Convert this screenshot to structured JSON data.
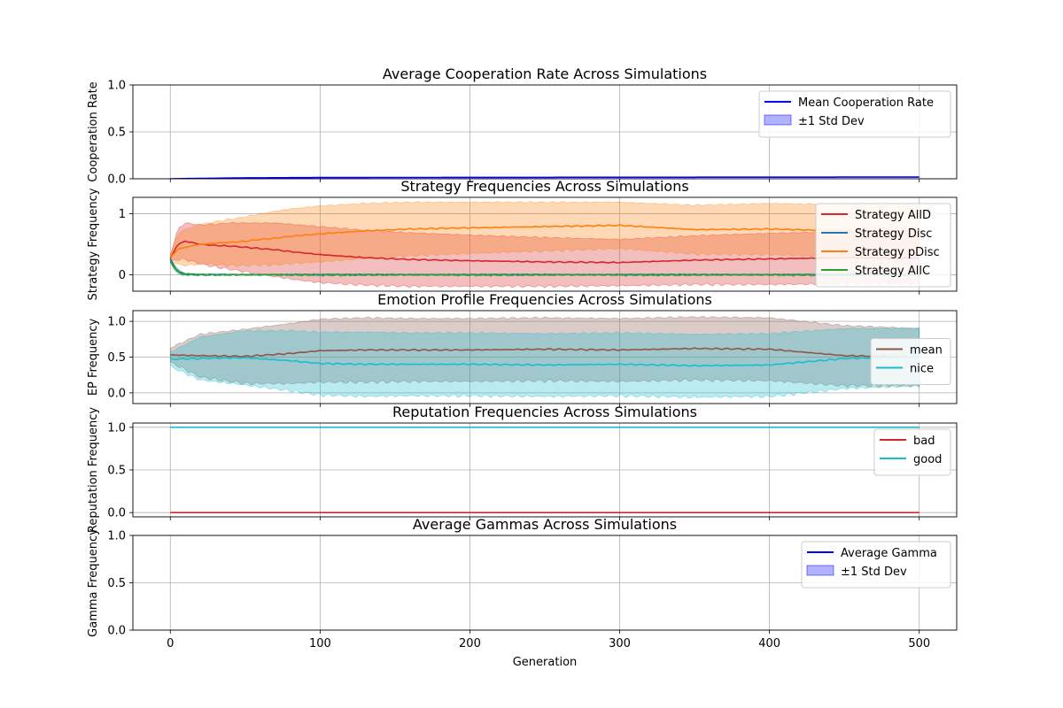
{
  "xlabel": "Generation",
  "chart_data": [
    {
      "type": "line",
      "title": "Average Cooperation Rate Across Simulations",
      "ylabel": "Cooperation Rate",
      "xlim": [
        -25,
        525
      ],
      "ylim": [
        0,
        1
      ],
      "yticks": [
        "0.0",
        "0.5",
        "1.0"
      ],
      "xticks": [
        "0",
        "100",
        "200",
        "300",
        "400",
        "500"
      ],
      "grid": true,
      "legend_position": "upper right",
      "series": [
        {
          "name": "Mean Cooperation Rate",
          "color": "#0000ff",
          "x": [
            0,
            50,
            100,
            200,
            300,
            400,
            500
          ],
          "y": [
            0.0,
            0.01,
            0.013,
            0.015,
            0.016,
            0.017,
            0.018
          ]
        }
      ],
      "band": {
        "name": "±1 Std Dev",
        "color": "#0000ff"
      }
    },
    {
      "type": "line",
      "title": "Strategy Frequencies Across Simulations",
      "ylabel": "Strategy Frequency",
      "xlim": [
        -25,
        525
      ],
      "ylim": [
        -0.27,
        1.27
      ],
      "yticks": [
        "0",
        "1"
      ],
      "ytick_values": [
        0,
        1
      ],
      "xticks": [
        "0",
        "100",
        "200",
        "300",
        "400",
        "500"
      ],
      "grid": true,
      "legend_position": "upper right",
      "series": [
        {
          "name": "Strategy AllD",
          "color": "#d62728",
          "x": [
            0,
            5,
            10,
            20,
            30,
            40,
            50,
            60,
            70,
            80,
            100,
            130,
            160,
            200,
            250,
            300,
            350,
            400,
            450,
            500
          ],
          "y": [
            0.27,
            0.5,
            0.55,
            0.5,
            0.48,
            0.47,
            0.45,
            0.43,
            0.41,
            0.38,
            0.33,
            0.28,
            0.25,
            0.23,
            0.21,
            0.2,
            0.24,
            0.26,
            0.28,
            0.27
          ],
          "std": [
            0.05,
            0.25,
            0.3,
            0.32,
            0.35,
            0.38,
            0.4,
            0.42,
            0.44,
            0.45,
            0.46,
            0.45,
            0.44,
            0.42,
            0.4,
            0.38,
            0.4,
            0.42,
            0.43,
            0.42
          ]
        },
        {
          "name": "Strategy Disc",
          "color": "#1f77b4",
          "x": [
            0,
            5,
            10,
            20,
            500
          ],
          "y": [
            0.25,
            0.05,
            0.01,
            0.0,
            0.0
          ],
          "std": [
            0.02,
            0.03,
            0.01,
            0.005,
            0.005
          ]
        },
        {
          "name": "Strategy pDisc",
          "color": "#ff7f0e",
          "x": [
            0,
            5,
            10,
            20,
            30,
            40,
            50,
            60,
            70,
            80,
            100,
            130,
            160,
            200,
            250,
            300,
            350,
            400,
            450,
            500
          ],
          "y": [
            0.28,
            0.42,
            0.45,
            0.5,
            0.52,
            0.53,
            0.55,
            0.58,
            0.6,
            0.63,
            0.67,
            0.72,
            0.75,
            0.77,
            0.79,
            0.81,
            0.74,
            0.75,
            0.72,
            0.73
          ],
          "std": [
            0.05,
            0.25,
            0.3,
            0.32,
            0.35,
            0.38,
            0.4,
            0.42,
            0.44,
            0.45,
            0.46,
            0.45,
            0.44,
            0.42,
            0.4,
            0.38,
            0.4,
            0.42,
            0.43,
            0.42
          ]
        },
        {
          "name": "Strategy AllC",
          "color": "#2ca02c",
          "x": [
            0,
            5,
            10,
            20,
            500
          ],
          "y": [
            0.22,
            0.04,
            0.01,
            0.0,
            0.0
          ],
          "std": [
            0.02,
            0.03,
            0.01,
            0.005,
            0.005
          ]
        }
      ]
    },
    {
      "type": "line",
      "title": "Emotion Profile Frequencies Across Simulations",
      "ylabel": "EP Frequency",
      "xlim": [
        -25,
        525
      ],
      "ylim": [
        -0.15,
        1.15
      ],
      "yticks": [
        "0.0",
        "0.5",
        "1.0"
      ],
      "ytick_values": [
        0,
        0.5,
        1
      ],
      "xticks": [
        "0",
        "100",
        "200",
        "300",
        "400",
        "500"
      ],
      "grid": true,
      "legend_position": "right",
      "series": [
        {
          "name": "mean",
          "color": "#8c564b",
          "x": [
            0,
            20,
            50,
            80,
            100,
            130,
            160,
            200,
            250,
            300,
            350,
            400,
            450,
            500
          ],
          "y": [
            0.53,
            0.52,
            0.51,
            0.55,
            0.59,
            0.6,
            0.6,
            0.6,
            0.61,
            0.6,
            0.62,
            0.61,
            0.52,
            0.5
          ],
          "std": [
            0.1,
            0.3,
            0.38,
            0.42,
            0.44,
            0.45,
            0.44,
            0.44,
            0.44,
            0.44,
            0.44,
            0.44,
            0.42,
            0.4
          ]
        },
        {
          "name": "nice",
          "color": "#17becf",
          "x": [
            0,
            20,
            50,
            80,
            100,
            130,
            160,
            200,
            250,
            300,
            350,
            400,
            450,
            500
          ],
          "y": [
            0.47,
            0.48,
            0.49,
            0.45,
            0.41,
            0.4,
            0.4,
            0.4,
            0.39,
            0.4,
            0.38,
            0.39,
            0.48,
            0.5
          ],
          "std": [
            0.1,
            0.3,
            0.38,
            0.42,
            0.44,
            0.45,
            0.44,
            0.44,
            0.44,
            0.44,
            0.44,
            0.44,
            0.42,
            0.4
          ]
        }
      ]
    },
    {
      "type": "line",
      "title": "Reputation Frequencies Across Simulations",
      "ylabel": "Reputation Frequency",
      "xlim": [
        -25,
        525
      ],
      "ylim": [
        -0.05,
        1.05
      ],
      "yticks": [
        "0.0",
        "0.5",
        "1.0"
      ],
      "ytick_values": [
        0,
        0.5,
        1
      ],
      "xticks": [
        "0",
        "100",
        "200",
        "300",
        "400",
        "500"
      ],
      "grid": true,
      "legend_position": "upper right",
      "series": [
        {
          "name": "bad",
          "color": "#d62728",
          "x": [
            0,
            500
          ],
          "y": [
            0.0,
            0.0
          ]
        },
        {
          "name": "good",
          "color": "#17becf",
          "x": [
            0,
            500
          ],
          "y": [
            1.0,
            1.0
          ]
        }
      ]
    },
    {
      "type": "line",
      "title": "Average Gammas Across Simulations",
      "ylabel": "Gamma Frequency",
      "xlim": [
        -25,
        525
      ],
      "ylim": [
        0,
        1
      ],
      "yticks": [
        "0.0",
        "0.5",
        "1.0"
      ],
      "ytick_values": [
        0,
        0.5,
        1
      ],
      "xticks": [
        "0",
        "100",
        "200",
        "300",
        "400",
        "500"
      ],
      "grid": true,
      "legend_position": "upper right",
      "series": [
        {
          "name": "Average Gamma",
          "color": "#0000ff",
          "x": [],
          "y": []
        }
      ],
      "band": {
        "name": "±1 Std Dev",
        "color": "#0000ff"
      }
    }
  ]
}
